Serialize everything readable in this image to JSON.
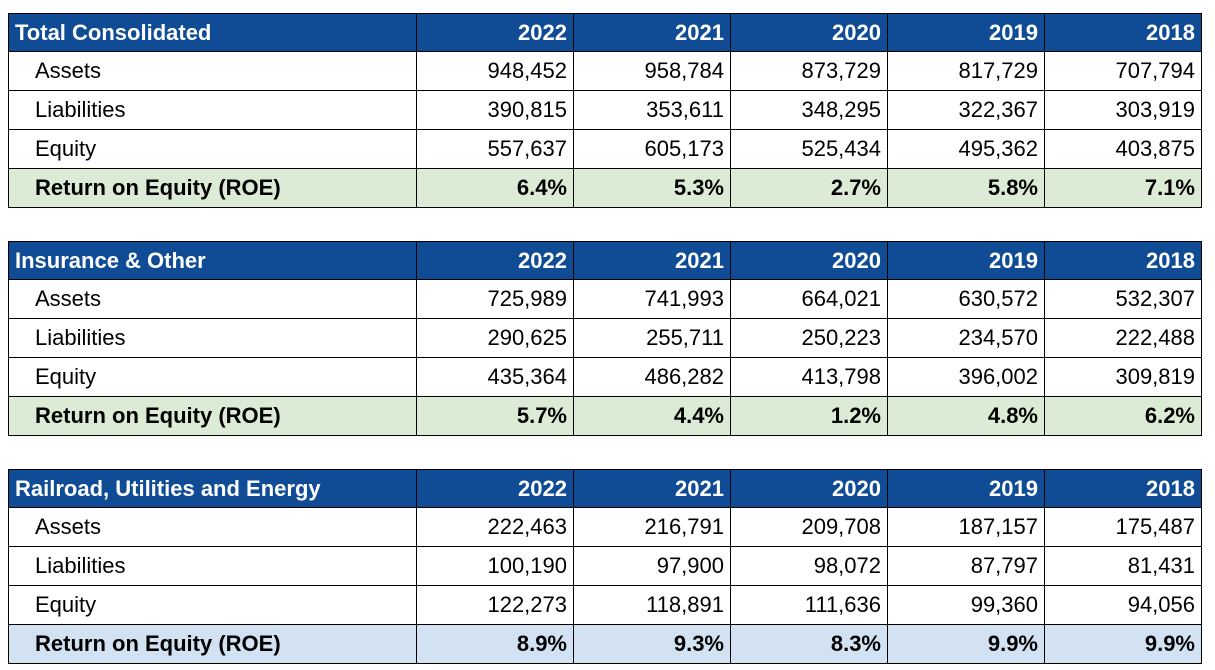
{
  "years": [
    "2022",
    "2021",
    "2020",
    "2019",
    "2018"
  ],
  "tables": [
    {
      "title": "Total Consolidated",
      "roe_color": "#dcebd5",
      "rows": [
        {
          "label": "Assets",
          "values": [
            "948,452",
            "958,784",
            "873,729",
            "817,729",
            "707,794"
          ]
        },
        {
          "label": "Liabilities",
          "values": [
            "390,815",
            "353,611",
            "348,295",
            "322,367",
            "303,919"
          ]
        },
        {
          "label": "Equity",
          "values": [
            "557,637",
            "605,173",
            "525,434",
            "495,362",
            "403,875"
          ]
        },
        {
          "label": "Return on Equity (ROE)",
          "values": [
            "6.4%",
            "5.3%",
            "2.7%",
            "5.8%",
            "7.1%"
          ]
        }
      ]
    },
    {
      "title": "Insurance & Other",
      "roe_color": "#dcebd5",
      "rows": [
        {
          "label": "Assets",
          "values": [
            "725,989",
            "741,993",
            "664,021",
            "630,572",
            "532,307"
          ]
        },
        {
          "label": "Liabilities",
          "values": [
            "290,625",
            "255,711",
            "250,223",
            "234,570",
            "222,488"
          ]
        },
        {
          "label": "Equity",
          "values": [
            "435,364",
            "486,282",
            "413,798",
            "396,002",
            "309,819"
          ]
        },
        {
          "label": "Return on Equity (ROE)",
          "values": [
            "5.7%",
            "4.4%",
            "1.2%",
            "4.8%",
            "6.2%"
          ]
        }
      ]
    },
    {
      "title": "Railroad, Utilities and Energy",
      "roe_color": "#d2e2f3",
      "rows": [
        {
          "label": "Assets",
          "values": [
            "222,463",
            "216,791",
            "209,708",
            "187,157",
            "175,487"
          ]
        },
        {
          "label": "Liabilities",
          "values": [
            "100,190",
            "97,900",
            "98,072",
            "87,797",
            "81,431"
          ]
        },
        {
          "label": "Equity",
          "values": [
            "122,273",
            "118,891",
            "111,636",
            "99,360",
            "94,056"
          ]
        },
        {
          "label": "Return on Equity (ROE)",
          "values": [
            "8.9%",
            "9.3%",
            "8.3%",
            "9.9%",
            "9.9%"
          ]
        }
      ]
    }
  ],
  "colors": {
    "header_bg": "#0f4c95",
    "header_text": "#ffffff",
    "roe_green": "#dcebd5",
    "roe_blue": "#d2e2f3"
  }
}
